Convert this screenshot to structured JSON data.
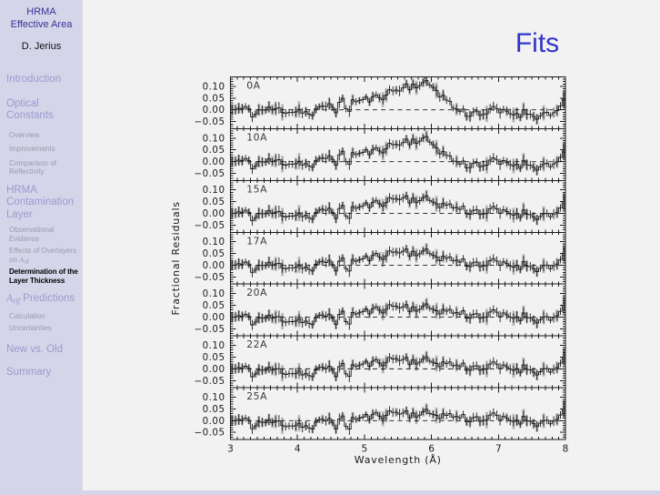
{
  "slide": {
    "header": {
      "title_line1": "HRMA",
      "title_line2": "Effective Area",
      "author": "D. Jerius"
    },
    "nav": {
      "introduction": "Introduction",
      "optical_constants": "Optical Constants",
      "overview": "Overview",
      "improvements": "Improvements",
      "comparison": "Comparison of Reflectivity",
      "hrma_contamination": "HRMA Contamination Layer",
      "observational": "Observational Evidence",
      "effects_pre": "Effects of Overlayers on ",
      "aeff_a": "A",
      "aeff_sub": "eff",
      "determination": "Determination of the Layer Thickness",
      "predictions_post": " Predictions",
      "calculation": "Calculation",
      "uncertainties": "Uncertainties",
      "new_vs_old": "New vs. Old",
      "summary": "Summary"
    },
    "title": "Fits"
  },
  "chart_data": {
    "type": "line",
    "description": "Seven stacked panels of fractional residuals vs wavelength for contamination overlayer thickness models 0A-25A; noisy stepped traces with error bars and dashed zero line",
    "xlabel": "Wavelength (Å)",
    "ylabel": "Fractional Residuals",
    "xlim": [
      3,
      8
    ],
    "ylim": [
      -0.08,
      0.14
    ],
    "x_major_ticks": [
      3,
      4,
      5,
      6,
      7,
      8
    ],
    "x_tick_labels": [
      "3",
      "4",
      "5",
      "6",
      "7",
      "8"
    ],
    "y_major_values": [
      0.1,
      0.05,
      0.0,
      -0.05
    ],
    "y_tick_labels": [
      "0.10",
      "0.05",
      "0.00",
      "−0.05"
    ],
    "x_minor_step": 0.1,
    "y_minor_step": 0.01,
    "n_bins": 100,
    "seed": 11,
    "noise_scale": 0.023,
    "err_base": 0.013,
    "err_rand": 0.012,
    "band_factor": 0.75,
    "common_features": [
      [
        3.35,
        -0.018,
        0.06
      ],
      [
        4.2,
        -0.025,
        0.07
      ],
      [
        4.75,
        -0.035,
        0.05
      ],
      [
        4.45,
        0.014,
        0.05
      ],
      [
        5.33,
        0.016,
        0.04
      ],
      [
        6.95,
        0.012,
        0.05
      ],
      [
        7.62,
        -0.018,
        0.05
      ],
      [
        7.97,
        0.03,
        0.04
      ]
    ],
    "panels": [
      {
        "label": "0A",
        "baseline": [
          [
            3,
            0
          ],
          [
            4.35,
            0
          ],
          [
            4.55,
            0.02
          ],
          [
            4.7,
            0.035
          ],
          [
            5.0,
            0.04
          ],
          [
            5.2,
            0.05
          ],
          [
            5.35,
            0.07
          ],
          [
            5.5,
            0.085
          ],
          [
            5.65,
            0.105
          ],
          [
            5.8,
            0.11
          ],
          [
            5.95,
            0.105
          ],
          [
            6.05,
            0.095
          ],
          [
            6.15,
            0.065
          ],
          [
            6.25,
            0.035
          ],
          [
            6.35,
            0.005
          ],
          [
            6.5,
            -0.01
          ],
          [
            7,
            -0.012
          ],
          [
            7.4,
            -0.015
          ],
          [
            7.8,
            -0.01
          ],
          [
            8,
            -0.005
          ]
        ]
      },
      {
        "label": "10A",
        "baseline": [
          [
            3,
            0
          ],
          [
            4.35,
            0
          ],
          [
            4.55,
            0.018
          ],
          [
            4.7,
            0.03
          ],
          [
            5.0,
            0.036
          ],
          [
            5.2,
            0.045
          ],
          [
            5.35,
            0.062
          ],
          [
            5.5,
            0.075
          ],
          [
            5.7,
            0.095
          ],
          [
            5.9,
            0.092
          ],
          [
            6.05,
            0.07
          ],
          [
            6.15,
            0.045
          ],
          [
            6.3,
            0.01
          ],
          [
            6.45,
            -0.008
          ],
          [
            7,
            -0.01
          ],
          [
            7.5,
            -0.01
          ],
          [
            8,
            -0.005
          ]
        ]
      },
      {
        "label": "15A",
        "baseline": [
          [
            3,
            0
          ],
          [
            4.3,
            0
          ],
          [
            4.6,
            0.015
          ],
          [
            5.0,
            0.03
          ],
          [
            5.3,
            0.048
          ],
          [
            5.55,
            0.068
          ],
          [
            5.8,
            0.062
          ],
          [
            6.0,
            0.052
          ],
          [
            6.3,
            0.03
          ],
          [
            6.6,
            0.012
          ],
          [
            6.9,
            0.003
          ],
          [
            7.3,
            0
          ],
          [
            8,
            0
          ]
        ]
      },
      {
        "label": "17A",
        "baseline": [
          [
            3,
            0
          ],
          [
            4.3,
            0
          ],
          [
            4.6,
            0.012
          ],
          [
            5.0,
            0.025
          ],
          [
            5.3,
            0.042
          ],
          [
            5.55,
            0.062
          ],
          [
            5.8,
            0.056
          ],
          [
            6.0,
            0.046
          ],
          [
            6.3,
            0.025
          ],
          [
            6.6,
            0.01
          ],
          [
            7,
            0
          ],
          [
            8,
            0
          ]
        ]
      },
      {
        "label": "20A",
        "baseline": [
          [
            3,
            0
          ],
          [
            3.6,
            -0.005
          ],
          [
            4.1,
            -0.01
          ],
          [
            4.4,
            -0.005
          ],
          [
            4.7,
            0.01
          ],
          [
            5.0,
            0.02
          ],
          [
            5.3,
            0.035
          ],
          [
            5.5,
            0.047
          ],
          [
            5.8,
            0.04
          ],
          [
            6.1,
            0.032
          ],
          [
            6.4,
            0.018
          ],
          [
            6.7,
            0.008
          ],
          [
            7,
            0.003
          ],
          [
            8,
            0
          ]
        ]
      },
      {
        "label": "22A",
        "baseline": [
          [
            3,
            0
          ],
          [
            3.6,
            -0.006
          ],
          [
            4.1,
            -0.012
          ],
          [
            4.4,
            -0.006
          ],
          [
            4.7,
            0.008
          ],
          [
            5.0,
            0.018
          ],
          [
            5.3,
            0.03
          ],
          [
            5.5,
            0.044
          ],
          [
            5.8,
            0.035
          ],
          [
            6.1,
            0.028
          ],
          [
            6.4,
            0.015
          ],
          [
            6.7,
            0.007
          ],
          [
            7,
            0.002
          ],
          [
            8,
            0
          ]
        ]
      },
      {
        "label": "25A",
        "baseline": [
          [
            3,
            0
          ],
          [
            3.6,
            -0.008
          ],
          [
            4.1,
            -0.014
          ],
          [
            4.4,
            -0.008
          ],
          [
            4.7,
            0.005
          ],
          [
            5.0,
            0.012
          ],
          [
            5.3,
            0.025
          ],
          [
            5.5,
            0.036
          ],
          [
            5.8,
            0.03
          ],
          [
            6.1,
            0.028
          ],
          [
            6.3,
            0.02
          ],
          [
            6.6,
            0.012
          ],
          [
            7,
            0.005
          ],
          [
            8,
            0
          ]
        ]
      }
    ]
  },
  "colors": {
    "sidebar_bg": "#d5d5ea",
    "main_bg": "#f2f2f2",
    "header_blue": "#333399",
    "title_blue": "#3333cc",
    "nav_section": "#9a9ace",
    "nav_sub": "#9b9bab",
    "nav_active": "#000000",
    "plot_ink": "#1a1a1a",
    "gray_band": "#b6b6b6"
  }
}
